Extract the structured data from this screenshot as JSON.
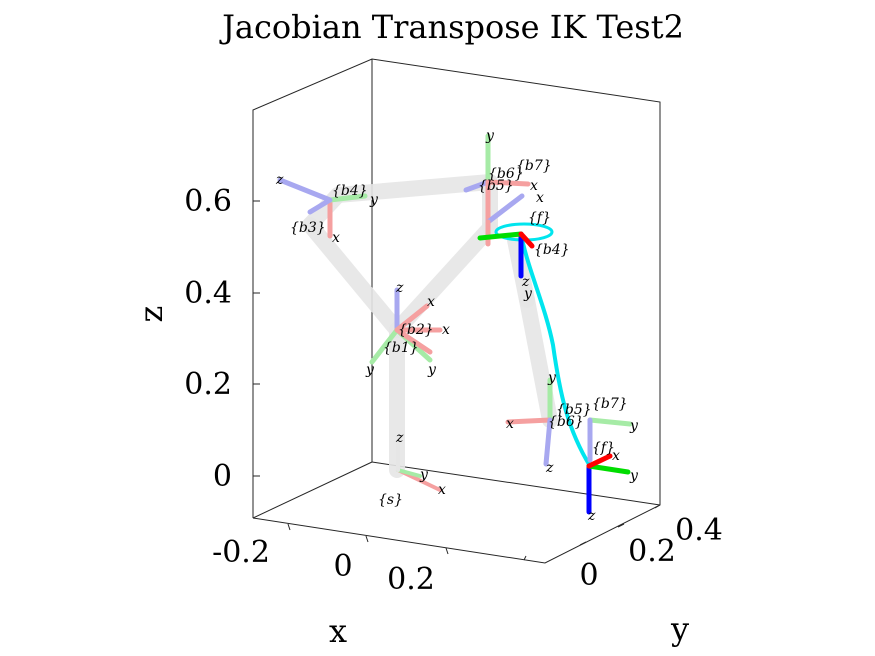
{
  "chart_data": {
    "type": "3d-line",
    "title": "Jacobian Transpose IK Test2",
    "xlabel": "x",
    "ylabel": "y",
    "zlabel": "z",
    "x_ticks": [
      "-0.2",
      "0",
      "0.2"
    ],
    "y_ticks": [
      "0",
      "0.2",
      "0.4"
    ],
    "z_ticks": [
      "0",
      "0.2",
      "0.4",
      "0.6"
    ],
    "grid": false,
    "colors": {
      "link": "#e6e6e6",
      "trajectory": "#00e5ee",
      "axis_x": "#ff0000",
      "axis_y": "#00dd00",
      "axis_z": "#0000ff",
      "axis_x_faded": "#f5a0a0",
      "axis_y_faded": "#a6eba6",
      "axis_z_faded": "#a8a8f0"
    },
    "frame_labels": {
      "space": "{s}",
      "b1": "{b1}",
      "b2": "{b2}",
      "b3": "{b3}",
      "b4": "{b4}",
      "b5": "{b5}",
      "b6": "{b6}",
      "b7": "{b7}",
      "end_effector": "{f}",
      "axis_x": "x",
      "axis_y": "y",
      "axis_z": "z"
    }
  }
}
